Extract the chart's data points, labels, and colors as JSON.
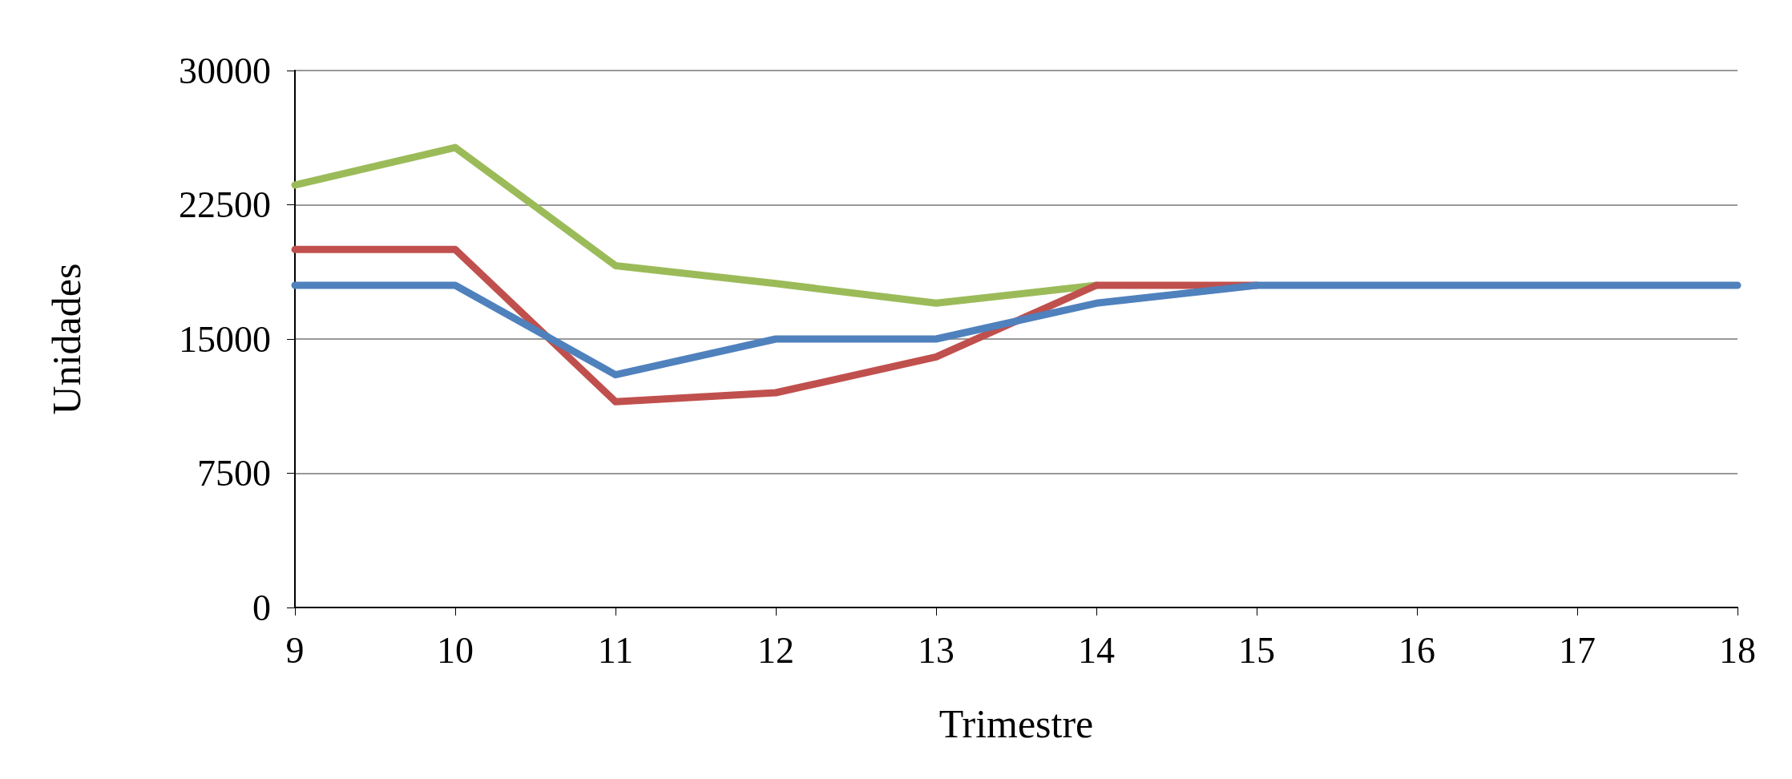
{
  "chart_data": {
    "type": "line",
    "xlabel": "Trimestre",
    "ylabel": "Unidades",
    "x": [
      9,
      10,
      11,
      12,
      13,
      14,
      15,
      16,
      17,
      18
    ],
    "series": [
      {
        "color": "#9bbb59",
        "values": [
          23600,
          25700,
          19100,
          18100,
          17000,
          18000,
          null,
          null,
          null,
          null
        ]
      },
      {
        "color": "#c0504d",
        "values": [
          20000,
          20000,
          11500,
          12000,
          14000,
          18000,
          18000,
          null,
          null,
          null
        ]
      },
      {
        "color": "#4f81bd",
        "values": [
          18000,
          18000,
          13000,
          15000,
          15000,
          17000,
          18000,
          18000,
          18000,
          18000
        ]
      }
    ],
    "xlim": [
      9,
      18
    ],
    "xticks": [
      9,
      10,
      11,
      12,
      13,
      14,
      15,
      16,
      17,
      18
    ],
    "ylim": [
      0,
      30000
    ],
    "yticks": [
      0,
      7500,
      15000,
      22500,
      30000
    ],
    "grid": "y",
    "marker": "none",
    "line_style": "solid"
  }
}
